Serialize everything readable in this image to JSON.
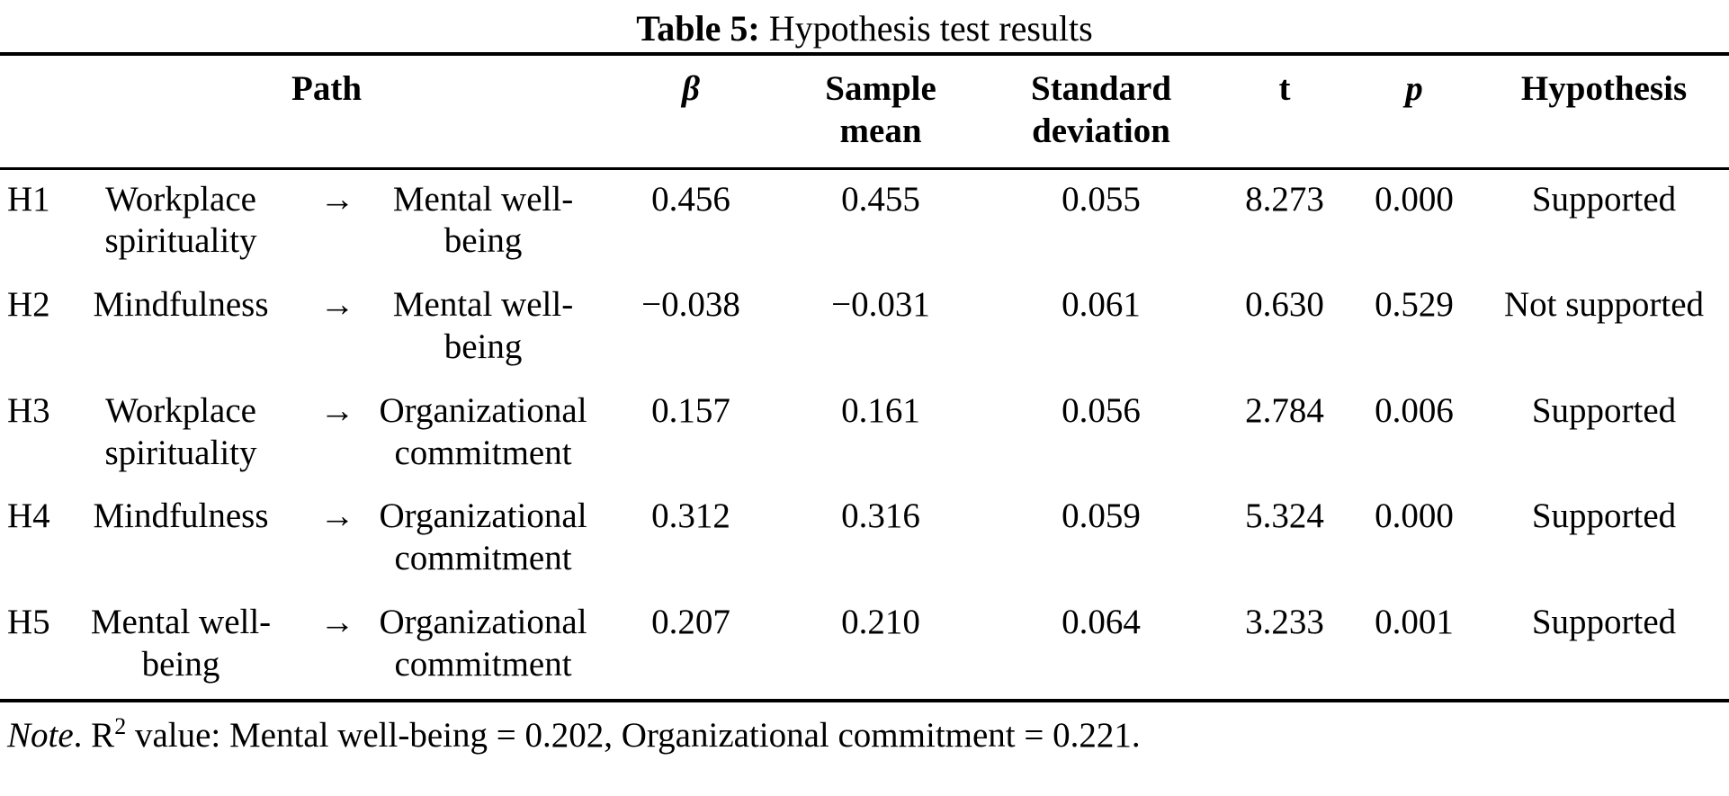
{
  "title": {
    "label": "Table 5:",
    "text": "Hypothesis test results"
  },
  "table": {
    "headers": {
      "path": "Path",
      "beta": "β",
      "sample_mean": "Sample mean",
      "standard_deviation": "Standard deviation",
      "t": "t",
      "p": "p",
      "hypothesis": "Hypothesis"
    },
    "arrow_icon": "→",
    "rows": [
      {
        "id": "H1",
        "from": "Workplace spirituality",
        "to": "Mental well-being",
        "beta": "0.456",
        "sample_mean": "0.455",
        "standard_deviation": "0.055",
        "t": "8.273",
        "p": "0.000",
        "hypothesis": "Supported"
      },
      {
        "id": "H2",
        "from": "Mindfulness",
        "to": "Mental well-being",
        "beta": "−0.038",
        "sample_mean": "−0.031",
        "standard_deviation": "0.061",
        "t": "0.630",
        "p": "0.529",
        "hypothesis": "Not supported"
      },
      {
        "id": "H3",
        "from": "Workplace spirituality",
        "to": "Organizational commitment",
        "beta": "0.157",
        "sample_mean": "0.161",
        "standard_deviation": "0.056",
        "t": "2.784",
        "p": "0.006",
        "hypothesis": "Supported"
      },
      {
        "id": "H4",
        "from": "Mindfulness",
        "to": "Organizational commitment",
        "beta": "0.312",
        "sample_mean": "0.316",
        "standard_deviation": "0.059",
        "t": "5.324",
        "p": "0.000",
        "hypothesis": "Supported"
      },
      {
        "id": "H5",
        "from": "Mental well-being",
        "to": "Organizational commitment",
        "beta": "0.207",
        "sample_mean": "0.210",
        "standard_deviation": "0.064",
        "t": "3.233",
        "p": "0.001",
        "hypothesis": "Supported"
      }
    ]
  },
  "note": {
    "italic_prefix": "Note",
    "mid": ". R",
    "sup": "2",
    "rest": " value: Mental well-being = 0.202, Organizational commitment = 0.221."
  }
}
